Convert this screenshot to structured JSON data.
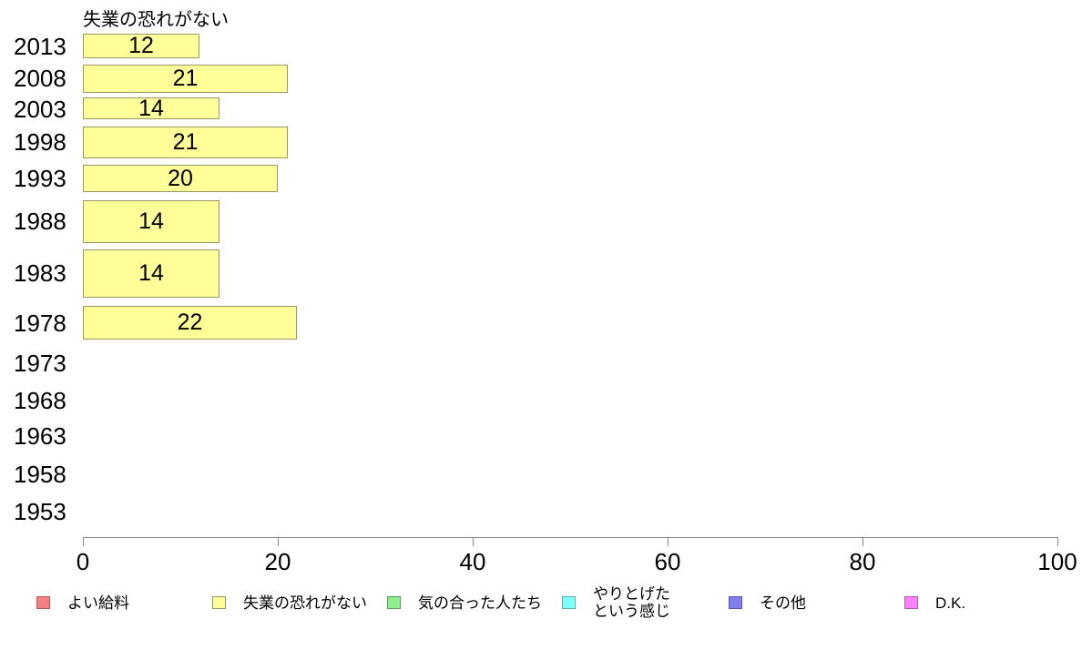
{
  "chart_data": {
    "type": "bar",
    "orientation": "horizontal",
    "title": "失業の恐れがない",
    "categories": [
      "2013",
      "2008",
      "2003",
      "1998",
      "1993",
      "1988",
      "1983",
      "1978",
      "1973",
      "1968",
      "1963",
      "1958",
      "1953"
    ],
    "values": [
      12,
      21,
      14,
      21,
      20,
      14,
      14,
      22,
      null,
      null,
      null,
      null,
      null
    ],
    "xlabel": "",
    "ylabel": "",
    "xlim": [
      0,
      100
    ],
    "x_ticks": [
      0,
      20,
      40,
      60,
      80,
      100
    ],
    "grid": false,
    "bar_fill_color": "#ffff99",
    "bar_border_color": "#999966",
    "axis_color": "#888888",
    "legend_position": "bottom",
    "legend": [
      {
        "label": "よい給料",
        "color": "#f28080",
        "border": "#b35959"
      },
      {
        "label": "失業の恐れがない",
        "color": "#ffff99",
        "border": "#99995c"
      },
      {
        "label": "気の合った人たち",
        "color": "#90ee90",
        "border": "#56a056"
      },
      {
        "label": "やりとげた\nという感じ",
        "color": "#80ffff",
        "border": "#56b3b3"
      },
      {
        "label": "その他",
        "color": "#8080e8",
        "border": "#5656b0"
      },
      {
        "label": "D.K.",
        "color": "#ff80ff",
        "border": "#b356b3"
      }
    ]
  }
}
